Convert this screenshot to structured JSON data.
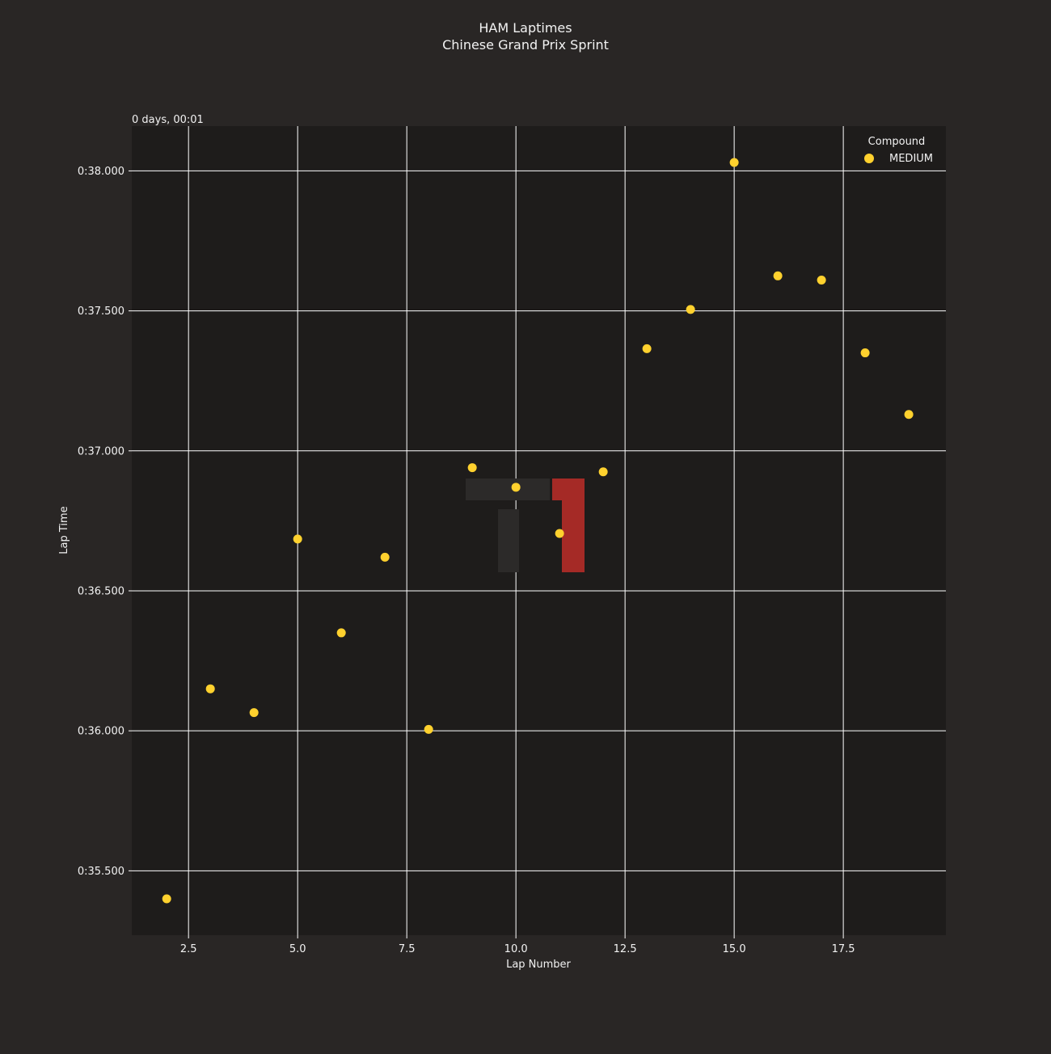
{
  "chart_data": {
    "type": "scatter",
    "title": "HAM Laptimes",
    "subtitle": "Chinese Grand Prix Sprint",
    "xlabel": "Lap Number",
    "ylabel": "Lap Time",
    "y_offset_label": "0 days, 00:01",
    "xlim": [
      1.2,
      19.85
    ],
    "ylim": [
      35.27,
      38.16
    ],
    "x_ticks": [
      2.5,
      5.0,
      7.5,
      10.0,
      12.5,
      15.0,
      17.5
    ],
    "x_tick_labels": [
      "2.5",
      "5.0",
      "7.5",
      "10.0",
      "12.5",
      "15.0",
      "17.5"
    ],
    "y_ticks": [
      35.5,
      36.0,
      36.5,
      37.0,
      37.5,
      38.0
    ],
    "y_tick_labels": [
      "0:35.500",
      "0:36.000",
      "0:36.500",
      "0:37.000",
      "0:37.500",
      "0:38.000"
    ],
    "grid": true,
    "legend": {
      "title": "Compound",
      "placement": "top-right",
      "entries": [
        "MEDIUM"
      ]
    },
    "series": [
      {
        "name": "MEDIUM",
        "color": "#ffd12e",
        "points": [
          {
            "x": 2,
            "y": 35.4
          },
          {
            "x": 3,
            "y": 36.15
          },
          {
            "x": 4,
            "y": 36.065
          },
          {
            "x": 5,
            "y": 36.685
          },
          {
            "x": 6,
            "y": 36.35
          },
          {
            "x": 7,
            "y": 36.62
          },
          {
            "x": 8,
            "y": 36.005
          },
          {
            "x": 9,
            "y": 36.94
          },
          {
            "x": 10,
            "y": 36.87
          },
          {
            "x": 11,
            "y": 36.705
          },
          {
            "x": 12,
            "y": 36.925
          },
          {
            "x": 13,
            "y": 37.365
          },
          {
            "x": 14,
            "y": 37.505
          },
          {
            "x": 15,
            "y": 38.03
          },
          {
            "x": 16,
            "y": 37.625
          },
          {
            "x": 17,
            "y": 37.61
          },
          {
            "x": 18,
            "y": 37.35
          },
          {
            "x": 19,
            "y": 37.13
          }
        ]
      }
    ]
  },
  "colors": {
    "background": "#292625",
    "plot_background": "#1e1c1b",
    "grid": "#ffffff",
    "text": "#f2f2f2",
    "watermark_red": "#a52a26"
  },
  "watermark": {
    "icon": "f1-logo-icon"
  }
}
